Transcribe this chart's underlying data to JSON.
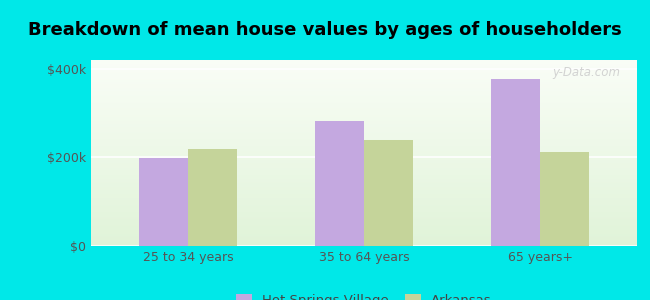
{
  "title": "Breakdown of mean house values by ages of householders",
  "categories": [
    "25 to 34 years",
    "35 to 64 years",
    "65 years+"
  ],
  "series": [
    {
      "label": "Hot Springs Village",
      "values": [
        198000,
        283000,
        378000
      ],
      "color": "#c4a8e0"
    },
    {
      "label": "Arkansas",
      "values": [
        218000,
        240000,
        213000
      ],
      "color": "#c5d49a"
    }
  ],
  "ylim": [
    0,
    420000
  ],
  "yticks": [
    0,
    200000,
    400000
  ],
  "ytick_labels": [
    "$0",
    "$200k",
    "$400k"
  ],
  "bar_width": 0.28,
  "background_color": "#00e8e8",
  "title_fontsize": 13,
  "tick_fontsize": 9,
  "legend_fontsize": 9.5,
  "watermark": "y-Data.com"
}
